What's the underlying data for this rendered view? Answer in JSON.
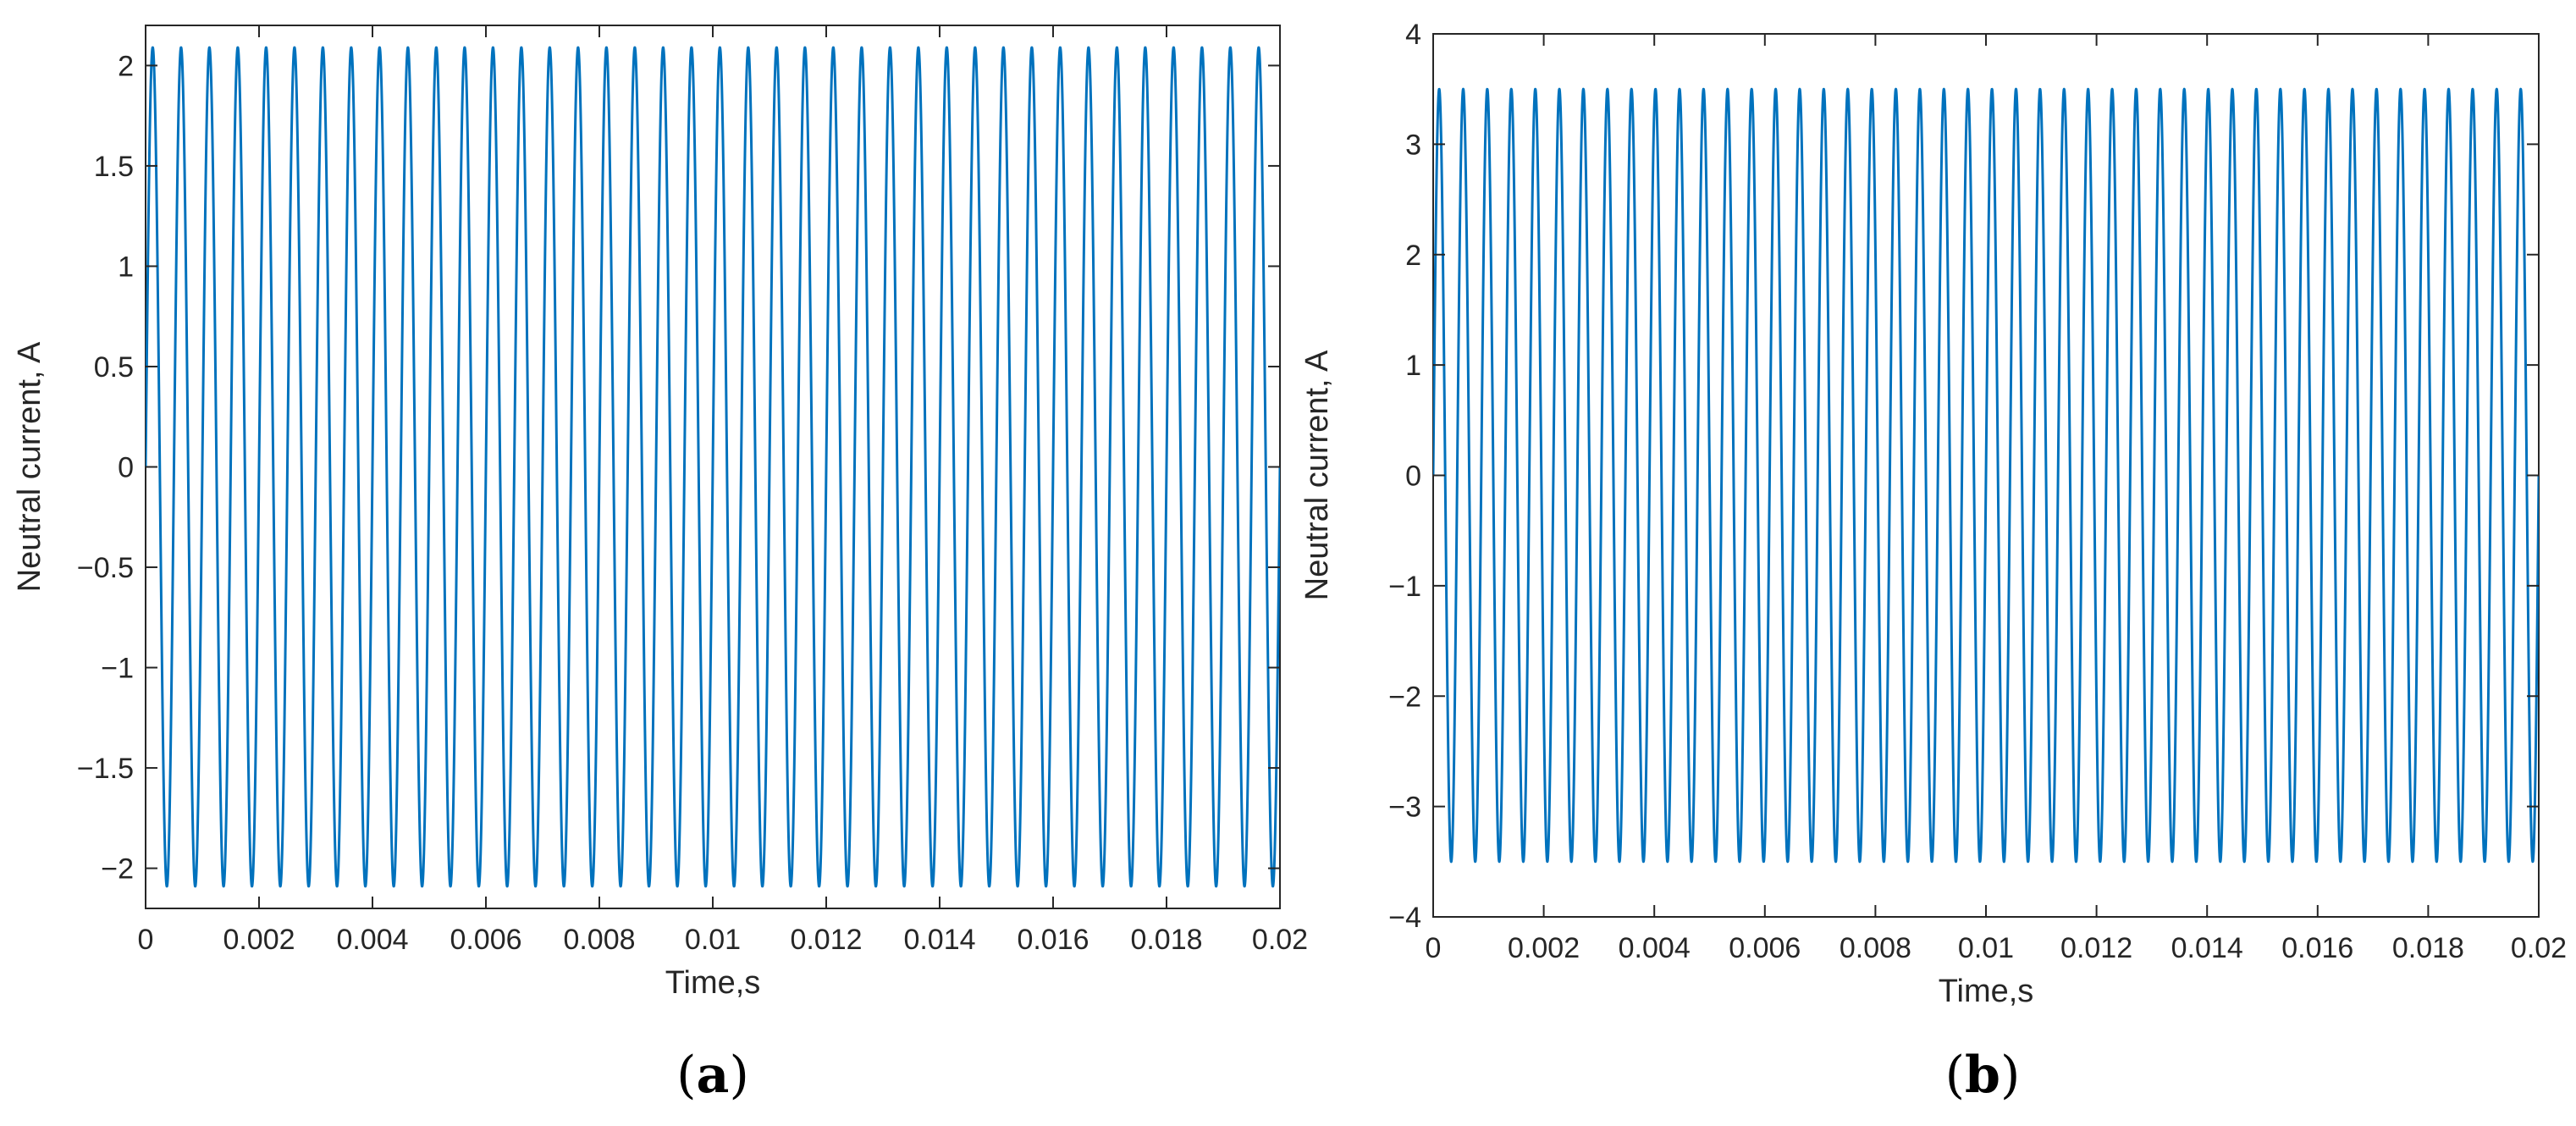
{
  "chart_data": [
    {
      "type": "line",
      "panel_label": "a",
      "title": "",
      "xlabel": "Time,s",
      "ylabel": "Neutral current, A",
      "xlim": [
        0,
        0.02
      ],
      "ylim": [
        -2.2,
        2.2
      ],
      "xticks": [
        0,
        0.002,
        0.004,
        0.006,
        0.008,
        0.01,
        0.012,
        0.014,
        0.016,
        0.018,
        0.02
      ],
      "xtick_labels": [
        "0",
        "0.002",
        "0.004",
        "0.006",
        "0.008",
        "0.01",
        "0.012",
        "0.014",
        "0.016",
        "0.018",
        "0.02"
      ],
      "yticks": [
        2,
        1.5,
        1,
        0.5,
        0,
        -0.5,
        -1,
        -1.5,
        -2
      ],
      "ytick_labels": [
        "2",
        "1.5",
        "1",
        "0.5",
        "0",
        "−0.5",
        "−1",
        "−1.5",
        "−2"
      ],
      "grid": false,
      "series": [
        {
          "color": "#0072bd",
          "waveform": "sine",
          "amplitude": 2.09,
          "frequency": 2000,
          "phase_deg": 0,
          "x_start": 0,
          "x_end": 0.02
        }
      ]
    },
    {
      "type": "line",
      "panel_label": "b",
      "title": "",
      "xlabel": "Time,s",
      "ylabel": "Neutral current, A",
      "xlim": [
        0,
        0.02
      ],
      "ylim": [
        -4,
        4
      ],
      "xticks": [
        0,
        0.002,
        0.004,
        0.006,
        0.008,
        0.01,
        0.012,
        0.014,
        0.016,
        0.018,
        0.02
      ],
      "xtick_labels": [
        "0",
        "0.002",
        "0.004",
        "0.006",
        "0.008",
        "0.01",
        "0.012",
        "0.014",
        "0.016",
        "0.018",
        "0.02"
      ],
      "yticks": [
        4,
        3,
        2,
        1,
        0,
        -1,
        -2,
        -3,
        -4
      ],
      "ytick_labels": [
        "4",
        "3",
        "2",
        "1",
        "0",
        "−1",
        "−2",
        "−3",
        "−4"
      ],
      "grid": false,
      "series": [
        {
          "color": "#0072bd",
          "waveform": "sine",
          "amplitude": 3.5,
          "frequency": 2300,
          "phase_deg": 0,
          "x_start": 0,
          "x_end": 0.02
        }
      ]
    }
  ]
}
